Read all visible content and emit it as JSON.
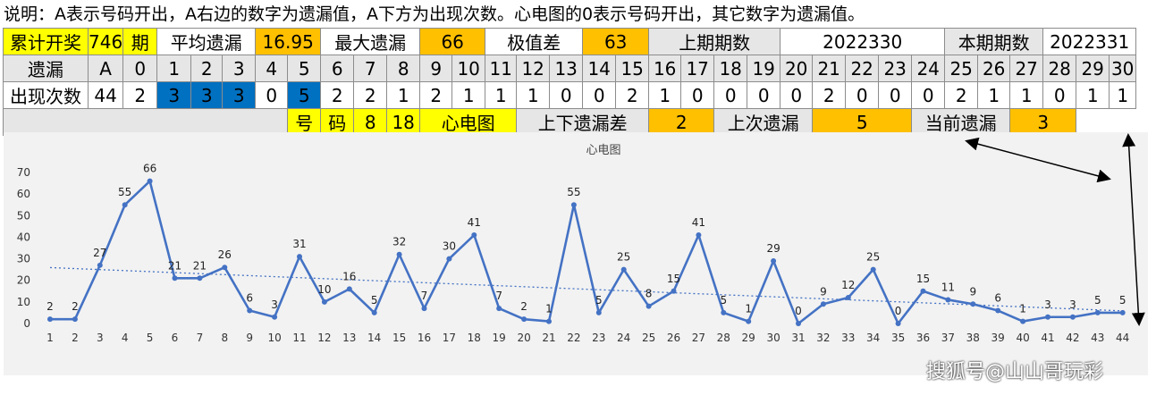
{
  "note": "说明：A表示号码开出，A右边的数字为遗漏值，A下方为出现次数。心电图的0表示号码开出，其它数字为遗漏值。",
  "row1": [
    {
      "text": "累计开奖",
      "bg": "y"
    },
    {
      "text": "746",
      "bg": "y"
    },
    {
      "text": "期",
      "bg": "y"
    },
    {
      "text": "平均遗漏",
      "bg": "w"
    },
    {
      "text": "16.95",
      "bg": "o"
    },
    {
      "text": "最大遗漏",
      "bg": "w"
    },
    {
      "text": "66",
      "bg": "o"
    },
    {
      "text": "极值差",
      "bg": "w"
    },
    {
      "text": "63",
      "bg": "o"
    },
    {
      "text": "上期期数",
      "bg": "g"
    },
    {
      "text": "2022330",
      "bg": "w"
    },
    {
      "text": "本期期数",
      "bg": "g"
    },
    {
      "text": "2022331",
      "bg": "w"
    }
  ],
  "row2_label": "遗漏",
  "row2": [
    "A",
    "0",
    "1",
    "2",
    "3",
    "4",
    "5",
    "6",
    "7",
    "8",
    "9",
    "10",
    "11",
    "12",
    "13",
    "14",
    "15",
    "16",
    "17",
    "18",
    "19",
    "20",
    "21",
    "22",
    "23",
    "24",
    "25",
    "26",
    "27",
    "28",
    "29",
    "30"
  ],
  "row3_label": "出现次数",
  "row3": [
    "44",
    "2",
    "3",
    "3",
    "3",
    "0",
    "5",
    "2",
    "2",
    "1",
    "2",
    "1",
    "1",
    "1",
    "0",
    "0",
    "2",
    "1",
    "0",
    "0",
    "0",
    "0",
    "2",
    "0",
    "0",
    "0",
    "2",
    "1",
    "1",
    "0",
    "1",
    "1"
  ],
  "row3_highlight": [
    2,
    3,
    4,
    6
  ],
  "highlight_color": "#0070c0",
  "row4": [
    {
      "text": "",
      "bg": "g"
    },
    {
      "text": "号",
      "bg": "y"
    },
    {
      "text": "码",
      "bg": "y"
    },
    {
      "text": "8",
      "bg": "y"
    },
    {
      "text": "18",
      "bg": "y"
    },
    {
      "text": "心电图",
      "bg": "y"
    },
    {
      "text": "上下遗漏差",
      "bg": "g"
    },
    {
      "text": "2",
      "bg": "o"
    },
    {
      "text": "上次遗漏",
      "bg": "g"
    },
    {
      "text": "5",
      "bg": "o"
    },
    {
      "text": "当前遗漏",
      "bg": "g"
    },
    {
      "text": "3",
      "bg": "o"
    }
  ],
  "watermark": "搜狐号@山山哥玩彩",
  "chart_data": {
    "type": "line",
    "title": "心电图",
    "x": [
      1,
      2,
      3,
      4,
      5,
      6,
      7,
      8,
      9,
      10,
      11,
      12,
      13,
      14,
      15,
      16,
      17,
      18,
      19,
      20,
      21,
      22,
      23,
      24,
      25,
      26,
      27,
      28,
      29,
      30,
      31,
      32,
      33,
      34,
      35,
      36,
      37,
      38,
      39,
      40,
      41,
      42,
      43,
      44
    ],
    "values": [
      2,
      2,
      27,
      55,
      66,
      21,
      21,
      26,
      6,
      3,
      31,
      10,
      16,
      5,
      32,
      7,
      30,
      41,
      7,
      2,
      1,
      55,
      5,
      25,
      8,
      15,
      41,
      5,
      1,
      29,
      0,
      9,
      12,
      25,
      0,
      15,
      11,
      9,
      6,
      1,
      3,
      3,
      5,
      5
    ],
    "ylim": [
      0,
      70
    ],
    "yticks": [
      0,
      10,
      20,
      30,
      40,
      50,
      60,
      70
    ],
    "trendline": "linear",
    "line_color": "#4472c4",
    "grid": false
  }
}
